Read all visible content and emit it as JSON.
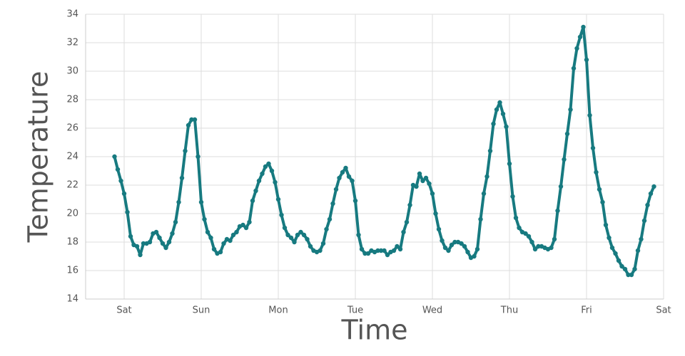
{
  "chart_data": {
    "type": "line",
    "x_label": "Time",
    "y_label": "Temperature",
    "xlim": [
      -12,
      168
    ],
    "xticks": [
      {
        "value": 0,
        "label": "Sat"
      },
      {
        "value": 24,
        "label": "Sun"
      },
      {
        "value": 48,
        "label": "Mon"
      },
      {
        "value": 72,
        "label": "Tue"
      },
      {
        "value": 96,
        "label": "Wed"
      },
      {
        "value": 120,
        "label": "Thu"
      },
      {
        "value": 144,
        "label": "Fri"
      },
      {
        "value": 168,
        "label": "Sat"
      }
    ],
    "ylim": [
      14,
      34
    ],
    "yticks": [
      14,
      16,
      18,
      20,
      22,
      24,
      26,
      28,
      30,
      32,
      34
    ],
    "grid": true,
    "x": [
      -3,
      -2,
      -1,
      0,
      1,
      2,
      3,
      4,
      5,
      6,
      7,
      8,
      9,
      10,
      11,
      12,
      13,
      14,
      15,
      16,
      17,
      18,
      19,
      20,
      21,
      22,
      23,
      24,
      25,
      26,
      27,
      28,
      29,
      30,
      31,
      32,
      33,
      34,
      35,
      36,
      37,
      38,
      39,
      40,
      41,
      42,
      43,
      44,
      45,
      46,
      47,
      48,
      49,
      50,
      51,
      52,
      53,
      54,
      55,
      56,
      57,
      58,
      59,
      60,
      61,
      62,
      63,
      64,
      65,
      66,
      67,
      68,
      69,
      70,
      71,
      72,
      73,
      74,
      75,
      76,
      77,
      78,
      79,
      80,
      81,
      82,
      83,
      84,
      85,
      86,
      87,
      88,
      89,
      90,
      91,
      92,
      93,
      94,
      95,
      96,
      97,
      98,
      99,
      100,
      101,
      102,
      103,
      104,
      105,
      106,
      107,
      108,
      109,
      110,
      111,
      112,
      113,
      114,
      115,
      116,
      117,
      118,
      119,
      120,
      121,
      122,
      123,
      124,
      125,
      126,
      127,
      128,
      129,
      130,
      131,
      132,
      133,
      134,
      135,
      136,
      137,
      138,
      139,
      140,
      141,
      142,
      143,
      144,
      145,
      146,
      147,
      148,
      149,
      150,
      151,
      152,
      153,
      154,
      155,
      156,
      157,
      158,
      159,
      160,
      161,
      162,
      163,
      164,
      165
    ],
    "series": [
      {
        "color": "#177a80",
        "values": [
          24.0,
          23.1,
          22.3,
          21.4,
          20.1,
          18.4,
          17.8,
          17.7,
          17.1,
          17.9,
          17.9,
          18.0,
          18.6,
          18.7,
          18.3,
          17.9,
          17.6,
          18.0,
          18.6,
          19.4,
          20.8,
          22.5,
          24.4,
          26.2,
          26.6,
          26.6,
          24.0,
          20.8,
          19.6,
          18.7,
          18.3,
          17.5,
          17.2,
          17.3,
          17.9,
          18.2,
          18.1,
          18.5,
          18.7,
          19.1,
          19.2,
          19.0,
          19.4,
          20.9,
          21.6,
          22.3,
          22.8,
          23.3,
          23.5,
          23.0,
          22.2,
          21.0,
          19.9,
          19.0,
          18.5,
          18.3,
          18.0,
          18.5,
          18.7,
          18.5,
          18.2,
          17.7,
          17.4,
          17.3,
          17.4,
          17.9,
          18.9,
          19.6,
          20.7,
          21.7,
          22.5,
          22.9,
          23.2,
          22.6,
          22.3,
          20.9,
          18.5,
          17.5,
          17.2,
          17.2,
          17.4,
          17.3,
          17.4,
          17.4,
          17.4,
          17.1,
          17.3,
          17.4,
          17.7,
          17.5,
          18.7,
          19.4,
          20.6,
          22.0,
          21.9,
          22.8,
          22.3,
          22.5,
          22.1,
          21.4,
          20.0,
          18.9,
          18.1,
          17.6,
          17.4,
          17.8,
          18.0,
          18.0,
          17.9,
          17.7,
          17.3,
          16.9,
          17.0,
          17.5,
          19.6,
          21.4,
          22.6,
          24.4,
          26.3,
          27.3,
          27.8,
          27.0,
          26.1,
          23.5,
          21.2,
          19.7,
          19.0,
          18.7,
          18.6,
          18.4,
          18.0,
          17.5,
          17.7,
          17.7,
          17.6,
          17.5,
          17.6,
          18.2,
          20.2,
          21.9,
          23.8,
          25.6,
          27.3,
          30.2,
          31.6,
          32.4,
          33.1,
          30.8,
          26.9,
          24.6,
          22.9,
          21.7,
          20.8,
          19.2,
          18.3,
          17.6,
          17.2,
          16.7,
          16.3,
          16.1,
          15.7,
          15.7,
          16.1,
          17.4,
          18.2,
          19.5,
          20.6,
          21.4,
          21.9
        ]
      }
    ]
  }
}
